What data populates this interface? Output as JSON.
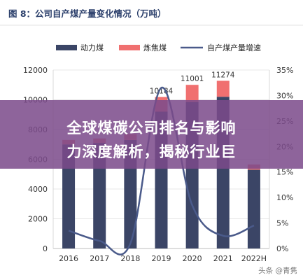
{
  "figure_title": "图 8：公司自产煤产量变化情况（万吨）",
  "banner": {
    "line1": "全球煤碳公司排名与影响",
    "line2": "力深度解析，揭秘行业巨"
  },
  "watermark": "头条 @青隽",
  "colors": {
    "thermal_coal": "#3b4566",
    "coking_coal": "#f07070",
    "growth_line": "#4a5a8a",
    "axis": "#d0d0d0",
    "grid": "#e8e8e8",
    "banner": "#7c4a8a"
  },
  "chart_data": {
    "type": "bar",
    "stacked": true,
    "categories": [
      "2016",
      "2017",
      "2018",
      "2019",
      "2020",
      "2021",
      "2022H"
    ],
    "series": [
      {
        "name": "动力煤",
        "type": "bar",
        "axis": "left",
        "values": [
          7000,
          7100,
          7300,
          9200,
          9850,
          10200,
          5300
        ]
      },
      {
        "name": "炼焦煤",
        "type": "bar",
        "axis": "left",
        "values": [
          300,
          300,
          400,
          984,
          1151,
          1074,
          350
        ]
      },
      {
        "name": "自产煤产量增速",
        "type": "line",
        "axis": "right",
        "unit": "%",
        "values": [
          3.5,
          1.5,
          1.0,
          31.5,
          8.5,
          2.5,
          4.5
        ]
      }
    ],
    "data_labels": [
      {
        "category": "2019",
        "value": "10184"
      },
      {
        "category": "2020",
        "value": "11001"
      },
      {
        "category": "2021",
        "value": "11274"
      }
    ],
    "y_left": {
      "min": 0,
      "max": 12000,
      "ticks": [
        0,
        2000,
        4000,
        6000,
        8000,
        10000,
        12000
      ]
    },
    "y_right": {
      "min": 0,
      "max": 35,
      "ticks": [
        "0%",
        "5%",
        "10%",
        "15%",
        "20%",
        "25%",
        "30%",
        "35%"
      ]
    },
    "legend_position": "top"
  }
}
